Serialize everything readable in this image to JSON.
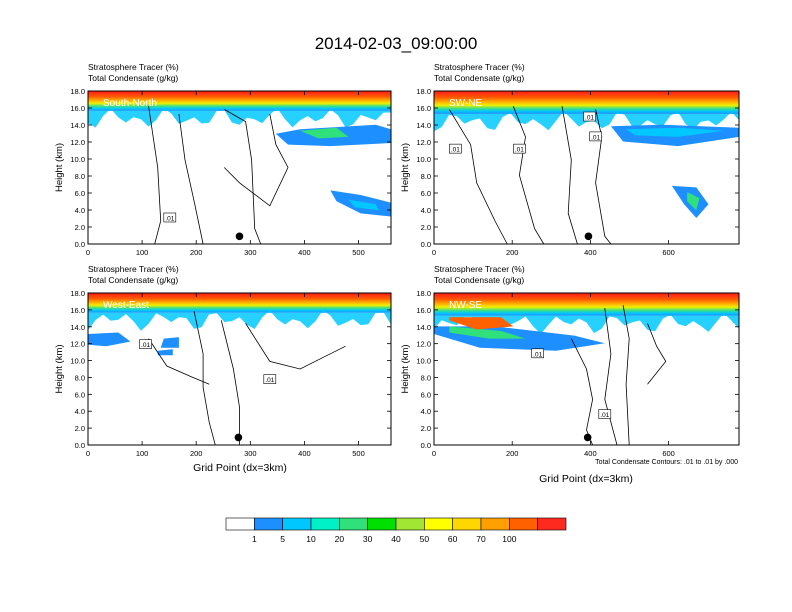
{
  "title": "2014-02-03_09:00:00",
  "xlabel": "Grid Point (dx=3km)",
  "ylabel": "Height (km)",
  "y_ticks": [
    "0.0",
    "2.0",
    "4.0",
    "6.0",
    "8.0",
    "10.0",
    "12.0",
    "14.0",
    "16.0",
    "18.0"
  ],
  "left_line1": "Stratosphere Tracer   (%)",
  "left_line2": "Total Condensate   (g/kg)",
  "contour_label": ".01",
  "contour_note": "Total Condensate Contours: .01 to .01 by .000",
  "colors": {
    "white": "#ffffff",
    "c1": "#1e8fff",
    "c5": "#00c8ff",
    "c10": "#00f0c8",
    "c20": "#30e07a",
    "c30": "#00e000",
    "c40": "#a0e632",
    "c50": "#ffff00",
    "c60": "#ffd700",
    "c70": "#ffa000",
    "c80": "#ff6000",
    "c100": "#ff2a1f"
  },
  "chart_data": {
    "type": "contour",
    "colorbar": {
      "levels": [
        1,
        5,
        10,
        20,
        30,
        40,
        50,
        60,
        70,
        100
      ],
      "colors": [
        "#ffffff",
        "#1e8fff",
        "#00c8ff",
        "#00f0c8",
        "#30e07a",
        "#00e000",
        "#a0e632",
        "#ffff00",
        "#ffd700",
        "#ffa000",
        "#ff6000",
        "#ff2a1f"
      ]
    },
    "panels": [
      {
        "label": "South-North",
        "xlim": [
          0,
          560
        ],
        "ylim": [
          0,
          18
        ],
        "x_ticks": [
          "0",
          "100",
          "200",
          "300",
          "400",
          "500"
        ],
        "x_tick_values": [
          0,
          100,
          200,
          300,
          400,
          500
        ],
        "marker_x": 280
      },
      {
        "label": "SW-NE",
        "xlim": [
          0,
          780
        ],
        "ylim": [
          0,
          18
        ],
        "x_ticks": [
          "0",
          "200",
          "400",
          "600"
        ],
        "x_tick_values": [
          0,
          200,
          400,
          600
        ],
        "marker_x": 395
      },
      {
        "label": "West-East",
        "xlim": [
          0,
          560
        ],
        "ylim": [
          0,
          18
        ],
        "x_ticks": [
          "0",
          "100",
          "200",
          "300",
          "400",
          "500"
        ],
        "x_tick_values": [
          0,
          100,
          200,
          300,
          400,
          500
        ],
        "marker_x": 278
      },
      {
        "label": "NW-SE",
        "xlim": [
          0,
          780
        ],
        "ylim": [
          0,
          18
        ],
        "x_ticks": [
          "0",
          "200",
          "400",
          "600"
        ],
        "x_tick_values": [
          0,
          200,
          400,
          600
        ],
        "marker_x": 393
      }
    ]
  }
}
